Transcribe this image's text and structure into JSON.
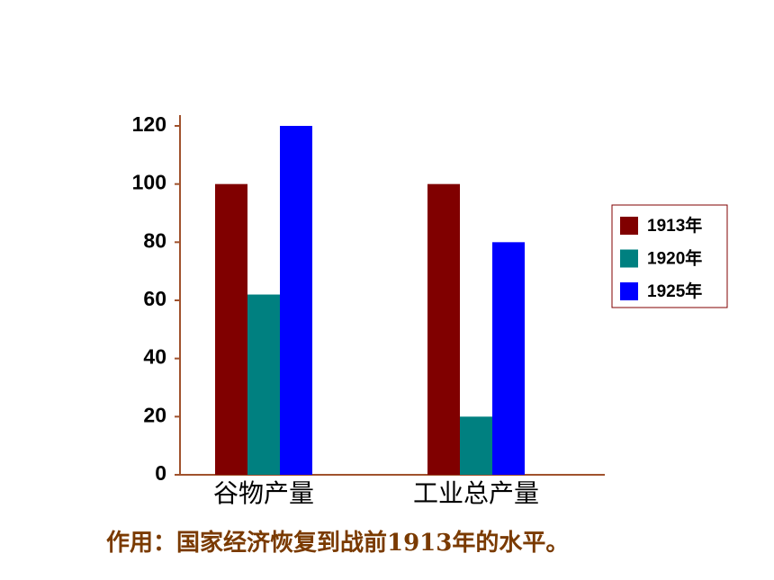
{
  "chart_data": {
    "type": "bar",
    "categories": [
      "谷物产量",
      "工业总产量"
    ],
    "series": [
      {
        "name": "1913年",
        "color": "#800000",
        "values": [
          100,
          100
        ]
      },
      {
        "name": "1920年",
        "color": "#008080",
        "values": [
          62,
          20
        ]
      },
      {
        "name": "1925年",
        "color": "#0000ff",
        "values": [
          120,
          80
        ]
      }
    ],
    "ylim": [
      0,
      120
    ],
    "yticks": [
      0,
      20,
      40,
      60,
      80,
      100,
      120
    ],
    "legend": "right",
    "annotation": "作用：国家经济恢复到战前1913年的水平。"
  }
}
